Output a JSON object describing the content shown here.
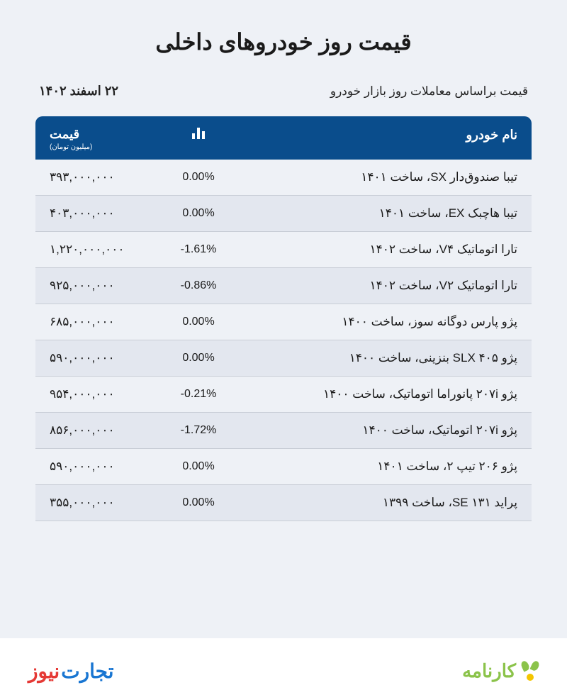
{
  "title": "قیمت روز خودروهای داخلی",
  "subtitle": "قیمت براساس معاملات روز بازار خودرو",
  "date": "۲۲ اسفند ۱۴۰۲",
  "colors": {
    "page_bg": "#eef1f6",
    "header_bg": "#0a4d8c",
    "header_text": "#ffffff",
    "row_border": "#c8cdd6",
    "row_alt": "#e3e7ef",
    "text": "#1a1a1a",
    "logo_green": "#8bc34a",
    "logo_yellow": "#f4c500",
    "logo_blue": "#1976d2",
    "logo_red": "#e53935"
  },
  "table": {
    "columns": {
      "name": "نام خودرو",
      "change_icon": "bar-chart",
      "price": "قیمت",
      "price_sub": "(میلیون تومان)"
    },
    "rows": [
      {
        "name": "تیبا صندوق‌دار SX، ساخت ۱۴۰۱",
        "change": "0.00%",
        "price": "۳۹۳,۰۰۰,۰۰۰"
      },
      {
        "name": "تیبا هاچبک EX، ساخت ۱۴۰۱",
        "change": "0.00%",
        "price": "۴۰۳,۰۰۰,۰۰۰"
      },
      {
        "name": "تارا اتوماتیک V۴، ساخت ۱۴۰۲",
        "change": "-1.61%",
        "price": "۱,۲۲۰,۰۰۰,۰۰۰"
      },
      {
        "name": "تارا اتوماتیک V۲، ساخت ۱۴۰۲",
        "change": "-0.86%",
        "price": "۹۲۵,۰۰۰,۰۰۰"
      },
      {
        "name": "پژو پارس دوگانه سوز، ساخت ۱۴۰۰",
        "change": "0.00%",
        "price": "۶۸۵,۰۰۰,۰۰۰"
      },
      {
        "name": "پژو ۴۰۵ SLX بنزینی، ساخت ۱۴۰۰",
        "change": "0.00%",
        "price": "۵۹۰,۰۰۰,۰۰۰"
      },
      {
        "name": "پژو ۲۰۷i پانوراما اتوماتیک، ساخت ۱۴۰۰",
        "change": "-0.21%",
        "price": "۹۵۴,۰۰۰,۰۰۰"
      },
      {
        "name": "پژو ۲۰۷i اتوماتیک، ساخت ۱۴۰۰",
        "change": "-1.72%",
        "price": "۸۵۶,۰۰۰,۰۰۰"
      },
      {
        "name": "پژو ۲۰۶ تیپ ۲، ساخت ۱۴۰۱",
        "change": "0.00%",
        "price": "۵۹۰,۰۰۰,۰۰۰"
      },
      {
        "name": "پراید ۱۳۱ SE، ساخت ۱۳۹۹",
        "change": "0.00%",
        "price": "۳۵۵,۰۰۰,۰۰۰"
      }
    ]
  },
  "footer": {
    "right_logo": "کارنامه",
    "left_logo_w1": "تجارت",
    "left_logo_w2": "نیوز"
  }
}
